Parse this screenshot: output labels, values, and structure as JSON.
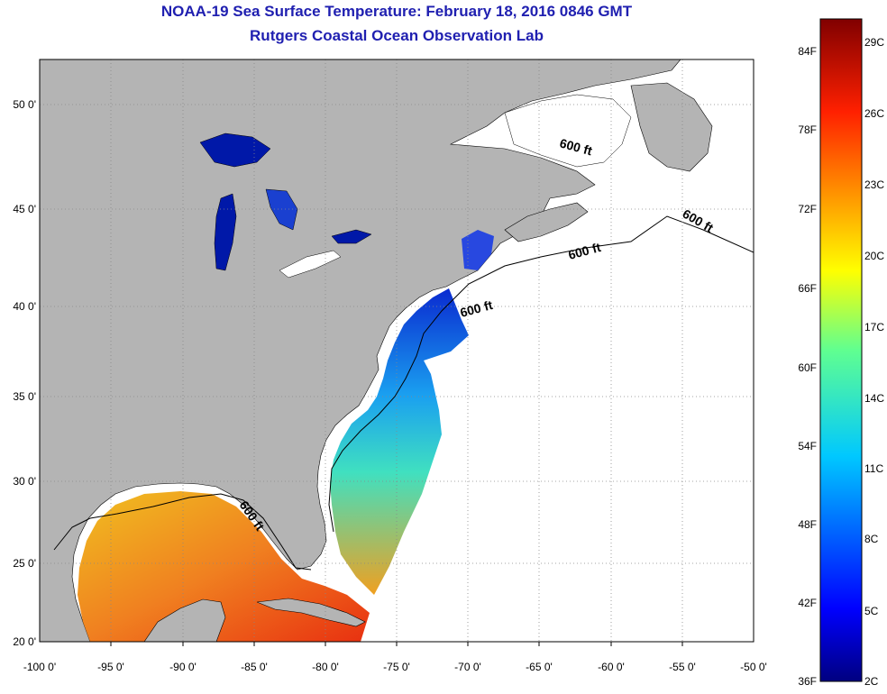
{
  "title": "NOAA-19 Sea Surface Temperature:  February 18, 2016 0846 GMT",
  "subtitle": "Rutgers Coastal Ocean Observation Lab",
  "map": {
    "lon_ticks": [
      "-100 0'",
      "-95 0'",
      "-90 0'",
      "-85 0'",
      "-80 0'",
      "-75 0'",
      "-70 0'",
      "-65 0'",
      "-60 0'",
      "-55 0'",
      "-50 0'"
    ],
    "lat_ticks": [
      "50 0'",
      "45 0'",
      "40 0'",
      "35 0'",
      "30 0'",
      "25 0'",
      "20 0'"
    ],
    "lon_range": [
      -100,
      -50
    ],
    "lat_range": [
      20,
      52.5
    ],
    "contour_labels": [
      "600 ft",
      "600 ft",
      "600 ft",
      "600 ft",
      "600 ft"
    ],
    "colors": {
      "land": "#b4b4b4",
      "ocean_no_data": "#ffffff",
      "grid": "#888888"
    }
  },
  "colorbar": {
    "f_labels": [
      "84F",
      "78F",
      "72F",
      "66F",
      "60F",
      "54F",
      "48F",
      "42F",
      "36F"
    ],
    "c_labels": [
      "29C",
      "26C",
      "23C",
      "20C",
      "17C",
      "14C",
      "11C",
      "8C",
      "5C",
      "2C"
    ],
    "range_c": [
      2,
      30
    ],
    "colormap": "jet"
  }
}
